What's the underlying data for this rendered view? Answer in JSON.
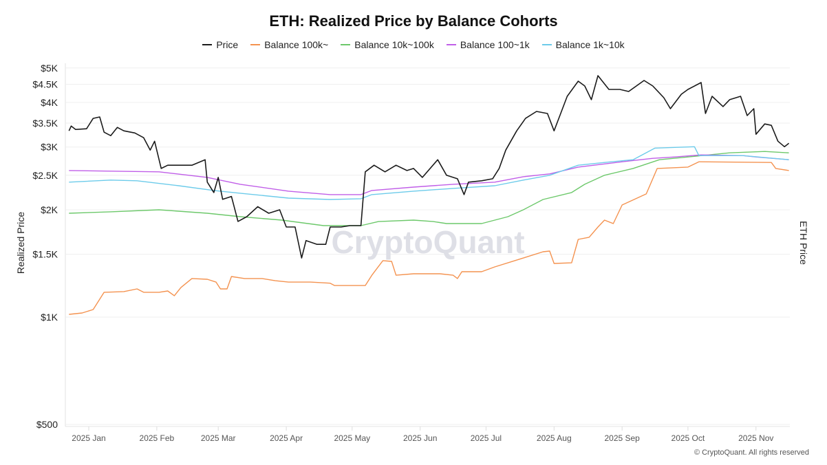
{
  "chart_data": {
    "type": "line",
    "title": "ETH: Realized Price by Balance Cohorts",
    "ylabel_left": "Realized Price",
    "ylabel_right": "ETH Price",
    "yscale": "log",
    "ylim": [
      500,
      5000
    ],
    "y_ticks": [
      {
        "value": 500,
        "label": "$500"
      },
      {
        "value": 1000,
        "label": "$1K"
      },
      {
        "value": 1500,
        "label": "$1.5K"
      },
      {
        "value": 2000,
        "label": "$2K"
      },
      {
        "value": 2500,
        "label": "$2.5K"
      },
      {
        "value": 3000,
        "label": "$3K"
      },
      {
        "value": 3500,
        "label": "$3.5K"
      },
      {
        "value": 4000,
        "label": "$4K"
      },
      {
        "value": 4500,
        "label": "$4.5K"
      },
      {
        "value": 5000,
        "label": "$5K"
      }
    ],
    "x_ticks": [
      {
        "date": "2025-01-01",
        "label": "2025 Jan"
      },
      {
        "date": "2025-02-01",
        "label": "2025 Feb"
      },
      {
        "date": "2025-03-01",
        "label": "2025 Mar"
      },
      {
        "date": "2025-04-01",
        "label": "2025 Apr"
      },
      {
        "date": "2025-05-01",
        "label": "2025 May"
      },
      {
        "date": "2025-06-01",
        "label": "2025 Jun"
      },
      {
        "date": "2025-07-01",
        "label": "2025 Jul"
      },
      {
        "date": "2025-08-01",
        "label": "2025 Aug"
      },
      {
        "date": "2025-09-01",
        "label": "2025 Sep"
      },
      {
        "date": "2025-10-01",
        "label": "2025 Oct"
      },
      {
        "date": "2025-11-01",
        "label": "2025 Nov"
      }
    ],
    "xlim": [
      "2024-12-23",
      "2025-11-16"
    ],
    "grid": true,
    "legend": "top-center",
    "series": [
      {
        "name": "Price",
        "color": "#1a1a1a",
        "points": [
          [
            "2024-12-23",
            3331
          ],
          [
            "2024-12-24",
            3436
          ],
          [
            "2024-12-26",
            3360
          ],
          [
            "2024-12-31",
            3375
          ],
          [
            "2025-01-03",
            3610
          ],
          [
            "2025-01-06",
            3643
          ],
          [
            "2025-01-08",
            3301
          ],
          [
            "2025-01-11",
            3229
          ],
          [
            "2025-01-14",
            3405
          ],
          [
            "2025-01-17",
            3331
          ],
          [
            "2025-01-22",
            3286
          ],
          [
            "2025-01-26",
            3186
          ],
          [
            "2025-01-29",
            2941
          ],
          [
            "2025-01-31",
            3115
          ],
          [
            "2025-02-03",
            2612
          ],
          [
            "2025-02-06",
            2667
          ],
          [
            "2025-02-11",
            2667
          ],
          [
            "2025-02-17",
            2667
          ],
          [
            "2025-02-23",
            2764
          ],
          [
            "2025-02-24",
            2391
          ],
          [
            "2025-02-27",
            2236
          ],
          [
            "2025-03-01",
            2466
          ],
          [
            "2025-03-03",
            2140
          ],
          [
            "2025-03-07",
            2180
          ],
          [
            "2025-03-10",
            1855
          ],
          [
            "2025-03-14",
            1913
          ],
          [
            "2025-03-19",
            2040
          ],
          [
            "2025-03-24",
            1956
          ],
          [
            "2025-03-29",
            2000
          ],
          [
            "2025-04-01",
            1790
          ],
          [
            "2025-04-05",
            1790
          ],
          [
            "2025-04-08",
            1465
          ],
          [
            "2025-04-10",
            1640
          ],
          [
            "2025-04-15",
            1600
          ],
          [
            "2025-04-19",
            1600
          ],
          [
            "2025-04-21",
            1790
          ],
          [
            "2025-04-26",
            1790
          ],
          [
            "2025-04-30",
            1806
          ],
          [
            "2025-05-05",
            1806
          ],
          [
            "2025-05-07",
            2556
          ],
          [
            "2025-05-11",
            2667
          ],
          [
            "2025-05-16",
            2556
          ],
          [
            "2025-05-21",
            2667
          ],
          [
            "2025-05-26",
            2578
          ],
          [
            "2025-05-29",
            2612
          ],
          [
            "2025-06-02",
            2466
          ],
          [
            "2025-06-09",
            2764
          ],
          [
            "2025-06-13",
            2500
          ],
          [
            "2025-06-18",
            2444
          ],
          [
            "2025-06-21",
            2206
          ],
          [
            "2025-06-23",
            2391
          ],
          [
            "2025-06-29",
            2412
          ],
          [
            "2025-07-04",
            2444
          ],
          [
            "2025-07-07",
            2612
          ],
          [
            "2025-07-10",
            2941
          ],
          [
            "2025-07-15",
            3331
          ],
          [
            "2025-07-19",
            3610
          ],
          [
            "2025-07-24",
            3776
          ],
          [
            "2025-07-29",
            3726
          ],
          [
            "2025-08-01",
            3331
          ],
          [
            "2025-08-04",
            3726
          ],
          [
            "2025-08-07",
            4164
          ],
          [
            "2025-08-12",
            4591
          ],
          [
            "2025-08-15",
            4450
          ],
          [
            "2025-08-18",
            4073
          ],
          [
            "2025-08-21",
            4757
          ],
          [
            "2025-08-26",
            4353
          ],
          [
            "2025-08-31",
            4353
          ],
          [
            "2025-09-04",
            4295
          ],
          [
            "2025-09-11",
            4611
          ],
          [
            "2025-09-15",
            4450
          ],
          [
            "2025-09-20",
            4127
          ],
          [
            "2025-09-23",
            3844
          ],
          [
            "2025-09-28",
            4220
          ],
          [
            "2025-10-01",
            4353
          ],
          [
            "2025-10-07",
            4550
          ],
          [
            "2025-10-09",
            3726
          ],
          [
            "2025-10-12",
            4164
          ],
          [
            "2025-10-17",
            3896
          ],
          [
            "2025-10-20",
            4073
          ],
          [
            "2025-10-25",
            4164
          ],
          [
            "2025-10-28",
            3676
          ],
          [
            "2025-10-31",
            3844
          ],
          [
            "2025-11-01",
            3257
          ],
          [
            "2025-11-05",
            3482
          ],
          [
            "2025-11-08",
            3451
          ],
          [
            "2025-11-11",
            3115
          ],
          [
            "2025-11-14",
            3006
          ],
          [
            "2025-11-16",
            3074
          ]
        ]
      },
      {
        "name": "Balance 100k~",
        "color": "#f4924f",
        "points": [
          [
            "2024-12-23",
            1018
          ],
          [
            "2024-12-29",
            1027
          ],
          [
            "2025-01-03",
            1050
          ],
          [
            "2025-01-08",
            1174
          ],
          [
            "2025-01-17",
            1179
          ],
          [
            "2025-01-23",
            1200
          ],
          [
            "2025-01-26",
            1174
          ],
          [
            "2025-02-02",
            1174
          ],
          [
            "2025-02-06",
            1184
          ],
          [
            "2025-02-09",
            1148
          ],
          [
            "2025-02-12",
            1211
          ],
          [
            "2025-02-17",
            1283
          ],
          [
            "2025-02-24",
            1277
          ],
          [
            "2025-02-28",
            1254
          ],
          [
            "2025-03-02",
            1200
          ],
          [
            "2025-03-05",
            1200
          ],
          [
            "2025-03-07",
            1300
          ],
          [
            "2025-03-13",
            1283
          ],
          [
            "2025-03-21",
            1283
          ],
          [
            "2025-03-27",
            1265
          ],
          [
            "2025-04-02",
            1254
          ],
          [
            "2025-04-12",
            1254
          ],
          [
            "2025-04-21",
            1245
          ],
          [
            "2025-04-23",
            1226
          ],
          [
            "2025-05-07",
            1226
          ],
          [
            "2025-05-10",
            1311
          ],
          [
            "2025-05-15",
            1440
          ],
          [
            "2025-05-19",
            1433
          ],
          [
            "2025-05-21",
            1311
          ],
          [
            "2025-05-29",
            1323
          ],
          [
            "2025-06-10",
            1323
          ],
          [
            "2025-06-16",
            1311
          ],
          [
            "2025-06-18",
            1283
          ],
          [
            "2025-06-20",
            1341
          ],
          [
            "2025-06-29",
            1341
          ],
          [
            "2025-07-05",
            1383
          ],
          [
            "2025-07-18",
            1465
          ],
          [
            "2025-07-27",
            1525
          ],
          [
            "2025-07-30",
            1532
          ],
          [
            "2025-08-01",
            1414
          ],
          [
            "2025-08-09",
            1420
          ],
          [
            "2025-08-12",
            1652
          ],
          [
            "2025-08-17",
            1675
          ],
          [
            "2025-08-21",
            1790
          ],
          [
            "2025-08-24",
            1871
          ],
          [
            "2025-08-28",
            1830
          ],
          [
            "2025-09-01",
            2063
          ],
          [
            "2025-09-12",
            2216
          ],
          [
            "2025-09-17",
            2612
          ],
          [
            "2025-10-01",
            2635
          ],
          [
            "2025-10-06",
            2727
          ],
          [
            "2025-11-08",
            2715
          ],
          [
            "2025-11-10",
            2612
          ],
          [
            "2025-11-16",
            2578
          ]
        ]
      },
      {
        "name": "Balance 10k~100k",
        "color": "#6cc86a",
        "points": [
          [
            "2024-12-23",
            1956
          ],
          [
            "2025-01-11",
            1974
          ],
          [
            "2025-02-02",
            2000
          ],
          [
            "2025-02-24",
            1956
          ],
          [
            "2025-03-11",
            1913
          ],
          [
            "2025-03-30",
            1871
          ],
          [
            "2025-04-18",
            1806
          ],
          [
            "2025-05-05",
            1806
          ],
          [
            "2025-05-13",
            1854
          ],
          [
            "2025-05-29",
            1871
          ],
          [
            "2025-06-07",
            1854
          ],
          [
            "2025-06-13",
            1830
          ],
          [
            "2025-06-29",
            1830
          ],
          [
            "2025-07-11",
            1913
          ],
          [
            "2025-07-18",
            2000
          ],
          [
            "2025-07-27",
            2138
          ],
          [
            "2025-08-09",
            2236
          ],
          [
            "2025-08-15",
            2358
          ],
          [
            "2025-08-24",
            2500
          ],
          [
            "2025-09-06",
            2612
          ],
          [
            "2025-09-18",
            2764
          ],
          [
            "2025-10-01",
            2813
          ],
          [
            "2025-10-20",
            2889
          ],
          [
            "2025-11-05",
            2915
          ],
          [
            "2025-11-16",
            2889
          ]
        ]
      },
      {
        "name": "Balance 100~1k",
        "color": "#c05ee8",
        "points": [
          [
            "2024-12-23",
            2578
          ],
          [
            "2025-02-02",
            2556
          ],
          [
            "2025-02-24",
            2466
          ],
          [
            "2025-03-11",
            2358
          ],
          [
            "2025-04-02",
            2256
          ],
          [
            "2025-04-21",
            2206
          ],
          [
            "2025-05-05",
            2206
          ],
          [
            "2025-05-10",
            2266
          ],
          [
            "2025-05-29",
            2316
          ],
          [
            "2025-06-16",
            2358
          ],
          [
            "2025-07-05",
            2391
          ],
          [
            "2025-07-18",
            2477
          ],
          [
            "2025-07-30",
            2522
          ],
          [
            "2025-08-12",
            2635
          ],
          [
            "2025-09-01",
            2727
          ],
          [
            "2025-09-15",
            2788
          ],
          [
            "2025-09-25",
            2813
          ],
          [
            "2025-10-07",
            2851
          ],
          [
            "2025-10-26",
            2838
          ],
          [
            "2025-11-01",
            2813
          ],
          [
            "2025-11-16",
            2764
          ]
        ]
      },
      {
        "name": "Balance 1k~10k",
        "color": "#6ccbea",
        "points": [
          [
            "2024-12-23",
            2391
          ],
          [
            "2025-01-11",
            2423
          ],
          [
            "2025-01-23",
            2412
          ],
          [
            "2025-02-11",
            2337
          ],
          [
            "2025-02-27",
            2266
          ],
          [
            "2025-03-11",
            2226
          ],
          [
            "2025-04-02",
            2157
          ],
          [
            "2025-04-21",
            2138
          ],
          [
            "2025-05-05",
            2148
          ],
          [
            "2025-05-10",
            2206
          ],
          [
            "2025-05-29",
            2256
          ],
          [
            "2025-06-16",
            2296
          ],
          [
            "2025-07-05",
            2337
          ],
          [
            "2025-07-18",
            2423
          ],
          [
            "2025-07-30",
            2500
          ],
          [
            "2025-08-12",
            2667
          ],
          [
            "2025-08-24",
            2715
          ],
          [
            "2025-09-06",
            2764
          ],
          [
            "2025-09-16",
            2980
          ],
          [
            "2025-10-04",
            3006
          ],
          [
            "2025-10-06",
            2838
          ],
          [
            "2025-10-26",
            2838
          ],
          [
            "2025-11-16",
            2764
          ]
        ]
      }
    ]
  },
  "watermark": "CryptoQuant",
  "copyright": "© CryptoQuant. All rights reserved"
}
